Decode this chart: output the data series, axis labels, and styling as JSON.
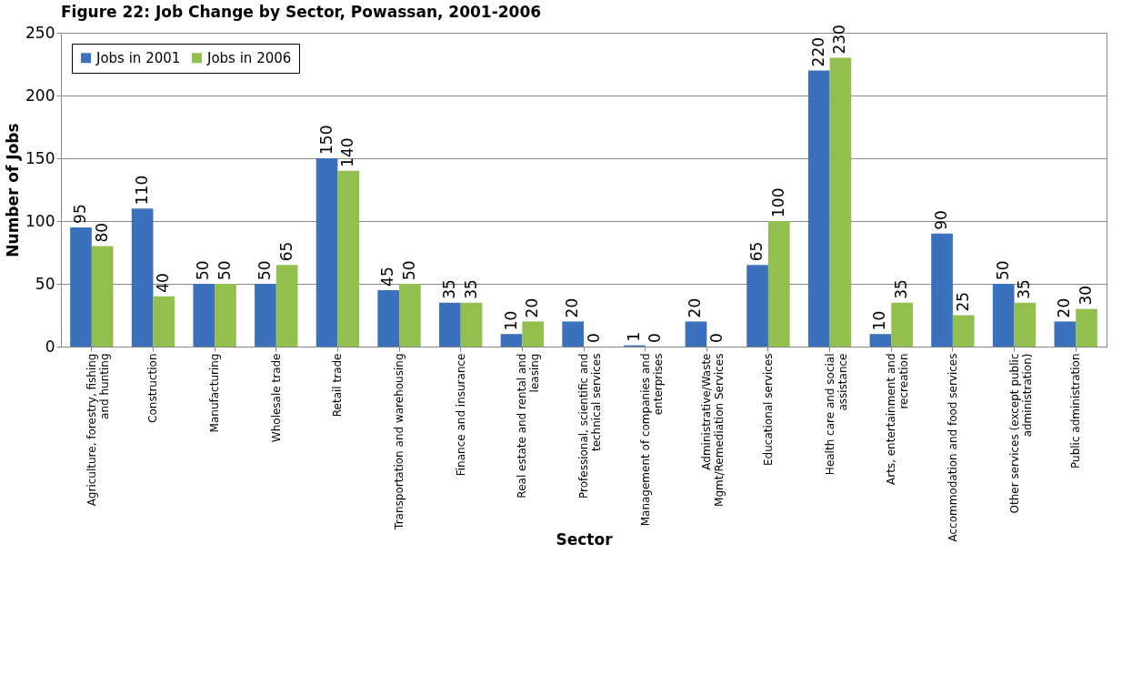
{
  "chart_data": {
    "type": "bar",
    "title": "Figure 22: Job Change by Sector, Powassan, 2001-2006",
    "xlabel": "Sector",
    "ylabel": "Number of Jobs",
    "categories": [
      "Agriculture, forestry, fishing and hunting",
      "Construction",
      "Manufacturing",
      "Wholesale trade",
      "Retail trade",
      "Transportation and warehousing",
      "Finance and insurance",
      "Real estate and rental and leasing",
      "Professional, scientific and technical services",
      "Management of companies and enterprises",
      "Administrative/Waste Mgmt/Remediation Services",
      "Educational services",
      "Health care and social assistance",
      "Arts, entertainment and recreation",
      "Accommodation and food services",
      "Other services (except public administration)",
      "Public administration"
    ],
    "series": [
      {
        "name": "Jobs in 2001",
        "color": "#3b70bd",
        "values": [
          95,
          110,
          50,
          50,
          150,
          45,
          35,
          10,
          20,
          1,
          20,
          65,
          220,
          10,
          90,
          50,
          20
        ]
      },
      {
        "name": "Jobs in 2006",
        "color": "#93bf4f",
        "values": [
          80,
          40,
          50,
          65,
          140,
          50,
          35,
          20,
          0,
          0,
          0,
          100,
          230,
          35,
          25,
          35,
          30
        ]
      }
    ],
    "ylim": [
      0,
      250
    ],
    "yticks": [
      0,
      50,
      100,
      150,
      200,
      250
    ],
    "grid": "y",
    "legend": "top left",
    "data_labels": true
  }
}
